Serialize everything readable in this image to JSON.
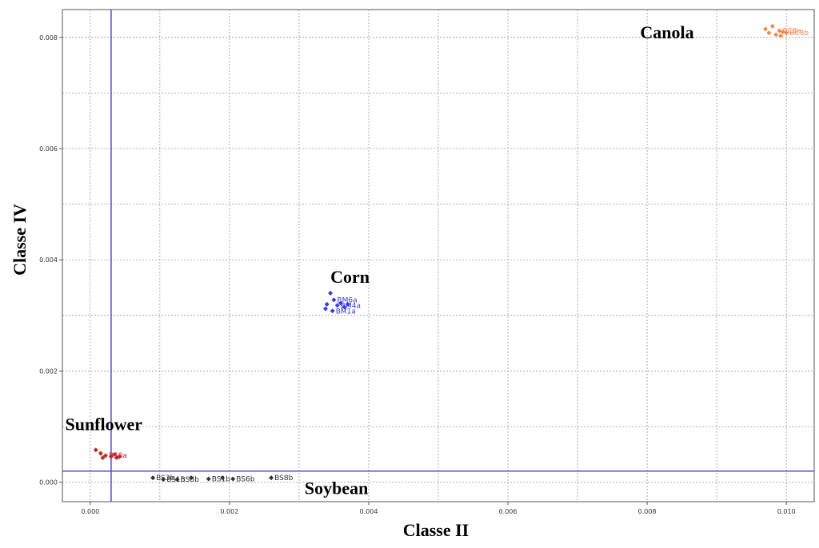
{
  "chart_data": {
    "type": "scatter",
    "xlabel": "Classe II",
    "ylabel": "Classe IV",
    "xlim": [
      -0.0004,
      0.0104
    ],
    "ylim": [
      -0.00035,
      0.0085
    ],
    "x_ticks": [
      "0.000",
      "0.002",
      "0.004",
      "0.006",
      "0.008",
      "0.010"
    ],
    "x_tick_values": [
      0,
      0.002,
      0.004,
      0.006,
      0.008,
      0.01
    ],
    "y_ticks": [
      "0.000",
      "0.002",
      "0.004",
      "0.006",
      "0.008"
    ],
    "y_tick_values": [
      0,
      0.002,
      0.004,
      0.006,
      0.008
    ],
    "grid": true,
    "reference_lines": {
      "x": 0.0003,
      "y": 0.0002,
      "color": "#4a4ae6"
    },
    "series": [
      {
        "name": "Canola",
        "color": "#f2894d",
        "points": [
          {
            "x": 0.0097,
            "y": 0.00815,
            "label": ""
          },
          {
            "x": 0.0098,
            "y": 0.0082,
            "label": ""
          },
          {
            "x": 0.00975,
            "y": 0.00808,
            "label": ""
          },
          {
            "x": 0.0099,
            "y": 0.00812,
            "label": "BC8a"
          },
          {
            "x": 0.00985,
            "y": 0.00805,
            "label": ""
          },
          {
            "x": 0.00995,
            "y": 0.0081,
            "label": ""
          },
          {
            "x": 0.01,
            "y": 0.00808,
            "label": "BC3b"
          },
          {
            "x": 0.00992,
            "y": 0.00803,
            "label": ""
          }
        ]
      },
      {
        "name": "Corn",
        "color": "#3a3ae0",
        "points": [
          {
            "x": 0.00345,
            "y": 0.0034,
            "label": ""
          },
          {
            "x": 0.0035,
            "y": 0.00328,
            "label": "BM6a"
          },
          {
            "x": 0.0034,
            "y": 0.0032,
            "label": ""
          },
          {
            "x": 0.00355,
            "y": 0.00318,
            "label": "BM4a"
          },
          {
            "x": 0.0036,
            "y": 0.00322,
            "label": ""
          },
          {
            "x": 0.00338,
            "y": 0.00312,
            "label": ""
          },
          {
            "x": 0.00348,
            "y": 0.00308,
            "label": "BM1a"
          },
          {
            "x": 0.00365,
            "y": 0.00315,
            "label": ""
          },
          {
            "x": 0.0037,
            "y": 0.0032,
            "label": ""
          }
        ]
      },
      {
        "name": "Sunflower",
        "color": "#c0282a",
        "points": [
          {
            "x": 8e-05,
            "y": 0.00058,
            "label": ""
          },
          {
            "x": 0.00015,
            "y": 0.00052,
            "label": ""
          },
          {
            "x": 0.00022,
            "y": 0.00048,
            "label": "BS8a"
          },
          {
            "x": 0.0003,
            "y": 0.00046,
            "label": ""
          },
          {
            "x": 0.00038,
            "y": 0.00044,
            "label": ""
          },
          {
            "x": 0.00042,
            "y": 0.00046,
            "label": ""
          },
          {
            "x": 0.00018,
            "y": 0.00044,
            "label": ""
          },
          {
            "x": 0.00035,
            "y": 0.0005,
            "label": ""
          }
        ]
      },
      {
        "name": "Soybean",
        "color": "#333333",
        "points": [
          {
            "x": 0.0009,
            "y": 8e-05,
            "label": "BS3b"
          },
          {
            "x": 0.00105,
            "y": 5e-05,
            "label": "BS1b"
          },
          {
            "x": 0.00125,
            "y": 5e-05,
            "label": "BS8b"
          },
          {
            "x": 0.00145,
            "y": 8e-05,
            "label": ""
          },
          {
            "x": 0.0017,
            "y": 6e-05,
            "label": "BS1b"
          },
          {
            "x": 0.0019,
            "y": 8e-05,
            "label": ""
          },
          {
            "x": 0.00205,
            "y": 6e-05,
            "label": "BS6b"
          },
          {
            "x": 0.0026,
            "y": 8e-05,
            "label": "BS8b"
          }
        ]
      }
    ],
    "cluster_labels": [
      {
        "text": "Canola",
        "x": 0.0079,
        "y": 0.0081
      },
      {
        "text": "Corn",
        "x": 0.00345,
        "y": 0.0037
      },
      {
        "text": "Sunflower",
        "x": -0.00036,
        "y": 0.00105
      },
      {
        "text": "Soybean",
        "x": 0.00308,
        "y": -0.0001
      }
    ]
  }
}
